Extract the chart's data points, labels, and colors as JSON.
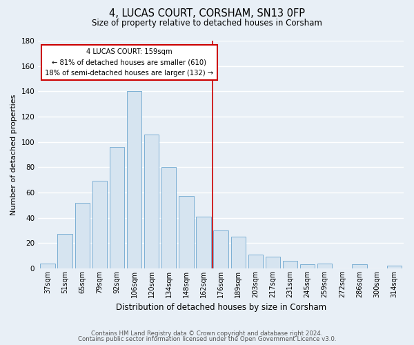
{
  "title": "4, LUCAS COURT, CORSHAM, SN13 0FP",
  "subtitle": "Size of property relative to detached houses in Corsham",
  "xlabel": "Distribution of detached houses by size in Corsham",
  "ylabel": "Number of detached properties",
  "bar_labels": [
    "37sqm",
    "51sqm",
    "65sqm",
    "79sqm",
    "92sqm",
    "106sqm",
    "120sqm",
    "134sqm",
    "148sqm",
    "162sqm",
    "176sqm",
    "189sqm",
    "203sqm",
    "217sqm",
    "231sqm",
    "245sqm",
    "259sqm",
    "272sqm",
    "286sqm",
    "300sqm",
    "314sqm"
  ],
  "bar_values": [
    4,
    27,
    52,
    69,
    96,
    140,
    106,
    80,
    57,
    41,
    30,
    25,
    11,
    9,
    6,
    3,
    4,
    0,
    3,
    0,
    2
  ],
  "bar_color": "#d6e4f0",
  "bar_edgecolor": "#7bafd4",
  "vline_x": 9.5,
  "vline_color": "#cc0000",
  "annotation_title": "4 LUCAS COURT: 159sqm",
  "annotation_line1": "← 81% of detached houses are smaller (610)",
  "annotation_line2": "18% of semi-detached houses are larger (132) →",
  "annotation_box_edgecolor": "#cc0000",
  "annotation_box_facecolor": "#ffffff",
  "ylim": [
    0,
    180
  ],
  "yticks": [
    0,
    20,
    40,
    60,
    80,
    100,
    120,
    140,
    160,
    180
  ],
  "footer_line1": "Contains HM Land Registry data © Crown copyright and database right 2024.",
  "footer_line2": "Contains public sector information licensed under the Open Government Licence v3.0.",
  "bg_color": "#e8eff6",
  "plot_bg_color": "#e8eff6",
  "grid_color": "#ffffff"
}
